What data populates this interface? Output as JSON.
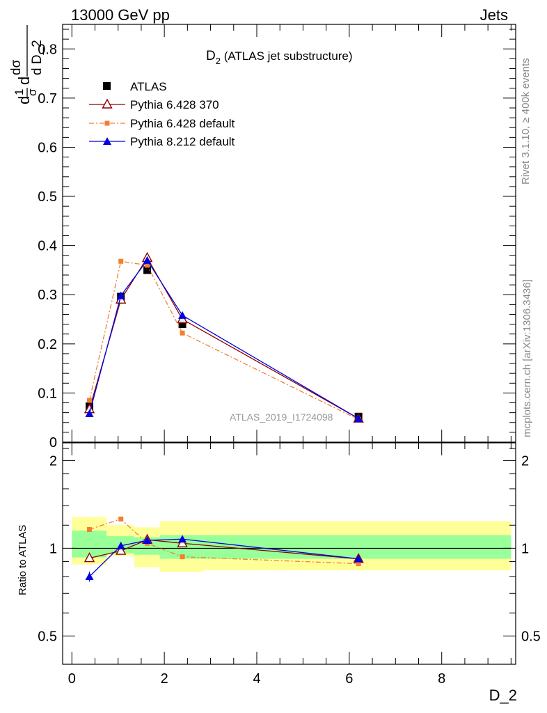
{
  "header": {
    "left": "13000 GeV pp",
    "right": "Jets"
  },
  "title": {
    "main": "D",
    "sub": "2",
    "rest": " (ATLAS jet substructure)"
  },
  "ylabel_main": {
    "d1": "d",
    "n1": "1",
    "sigma": "σ",
    "d2": "d",
    "dsig": "dσ",
    "dD": "d D_2"
  },
  "ratio_ylabel": "Ratio to ATLAS",
  "xlabel": "D_2",
  "side_top": "Rivet 3.1.10, ≥ 400k events",
  "side_bottom": "mcplots.cern.ch [arXiv:1306.3436]",
  "watermark": "ATLAS_2019_I1724098",
  "colors": {
    "atlas": "#000000",
    "p6_370": "#8b0000",
    "p6_default": "#f47e30",
    "p8": "#0000e0",
    "band_inner": "#99ff99",
    "band_outer": "#ffff99"
  },
  "chart_data": [
    {
      "type": "line",
      "title": "D2 (ATLAS jet substructure)",
      "xlabel": "D_2",
      "ylabel": "1/σ dσ/d D_2",
      "xlim": [
        -0.2,
        9.6
      ],
      "ylim": [
        0,
        0.85
      ],
      "x_ticks": [
        "0",
        "2",
        "4",
        "6",
        "8"
      ],
      "y_ticks": [
        "0",
        "0.1",
        "0.2",
        "0.3",
        "0.4",
        "0.5",
        "0.6",
        "0.7",
        "0.8"
      ],
      "legend_position": "top-left",
      "series": [
        {
          "name": "ATLAS",
          "marker": "square",
          "x": [
            0.38,
            1.06,
            1.63,
            2.39,
            6.2
          ],
          "values": [
            0.073,
            0.296,
            0.35,
            0.24,
            0.052
          ]
        },
        {
          "name": "Pythia 6.428 370",
          "marker": "open-triangle",
          "x": [
            0.38,
            1.06,
            1.63,
            2.39,
            6.2
          ],
          "values": [
            0.067,
            0.29,
            0.375,
            0.25,
            0.048
          ]
        },
        {
          "name": "Pythia 6.428 default",
          "marker": "small-square",
          "dashed": true,
          "x": [
            0.38,
            1.06,
            1.63,
            2.39,
            6.2
          ],
          "values": [
            0.085,
            0.368,
            0.36,
            0.222,
            0.046
          ]
        },
        {
          "name": "Pythia 8.212 default",
          "marker": "triangle",
          "x": [
            0.38,
            1.06,
            1.63,
            2.39,
            6.2
          ],
          "values": [
            0.058,
            0.298,
            0.37,
            0.258,
            0.048
          ]
        }
      ]
    },
    {
      "type": "line",
      "title": "",
      "xlabel": "D_2",
      "ylabel": "Ratio to ATLAS",
      "xlim": [
        -0.2,
        9.6
      ],
      "ylim": [
        0.4,
        2.3
      ],
      "y_scale": "log",
      "x_ticks": [
        "0",
        "2",
        "4",
        "6",
        "8"
      ],
      "y_ticks": [
        "0.5",
        "1",
        "2"
      ],
      "bands": [
        {
          "x0": 0.0,
          "x1": 0.75,
          "inner": [
            0.93,
            1.15
          ],
          "outer": [
            0.88,
            1.28
          ]
        },
        {
          "x0": 0.75,
          "x1": 1.35,
          "inner": [
            0.96,
            1.1
          ],
          "outer": [
            0.94,
            1.2
          ]
        },
        {
          "x0": 1.35,
          "x1": 1.9,
          "inner": [
            0.95,
            1.09
          ],
          "outer": [
            0.86,
            1.18
          ]
        },
        {
          "x0": 1.9,
          "x1": 2.85,
          "inner": [
            0.92,
            1.11
          ],
          "outer": [
            0.83,
            1.24
          ]
        },
        {
          "x0": 2.85,
          "x1": 9.5,
          "inner": [
            0.92,
            1.11
          ],
          "outer": [
            0.84,
            1.24
          ]
        }
      ],
      "series": [
        {
          "name": "Pythia 6.428 370",
          "marker": "open-triangle",
          "x": [
            0.38,
            1.06,
            1.63,
            2.39,
            6.2
          ],
          "values": [
            0.925,
            0.98,
            1.07,
            1.04,
            0.92
          ]
        },
        {
          "name": "Pythia 6.428 default",
          "marker": "small-square",
          "dashed": true,
          "x": [
            0.38,
            1.06,
            1.63,
            2.39,
            6.2
          ],
          "values": [
            1.16,
            1.26,
            1.04,
            0.935,
            0.885
          ]
        },
        {
          "name": "Pythia 8.212 default",
          "marker": "triangle",
          "x": [
            0.38,
            1.06,
            1.63,
            2.39,
            6.2
          ],
          "values": [
            0.8,
            1.02,
            1.065,
            1.075,
            0.92
          ]
        }
      ]
    }
  ]
}
